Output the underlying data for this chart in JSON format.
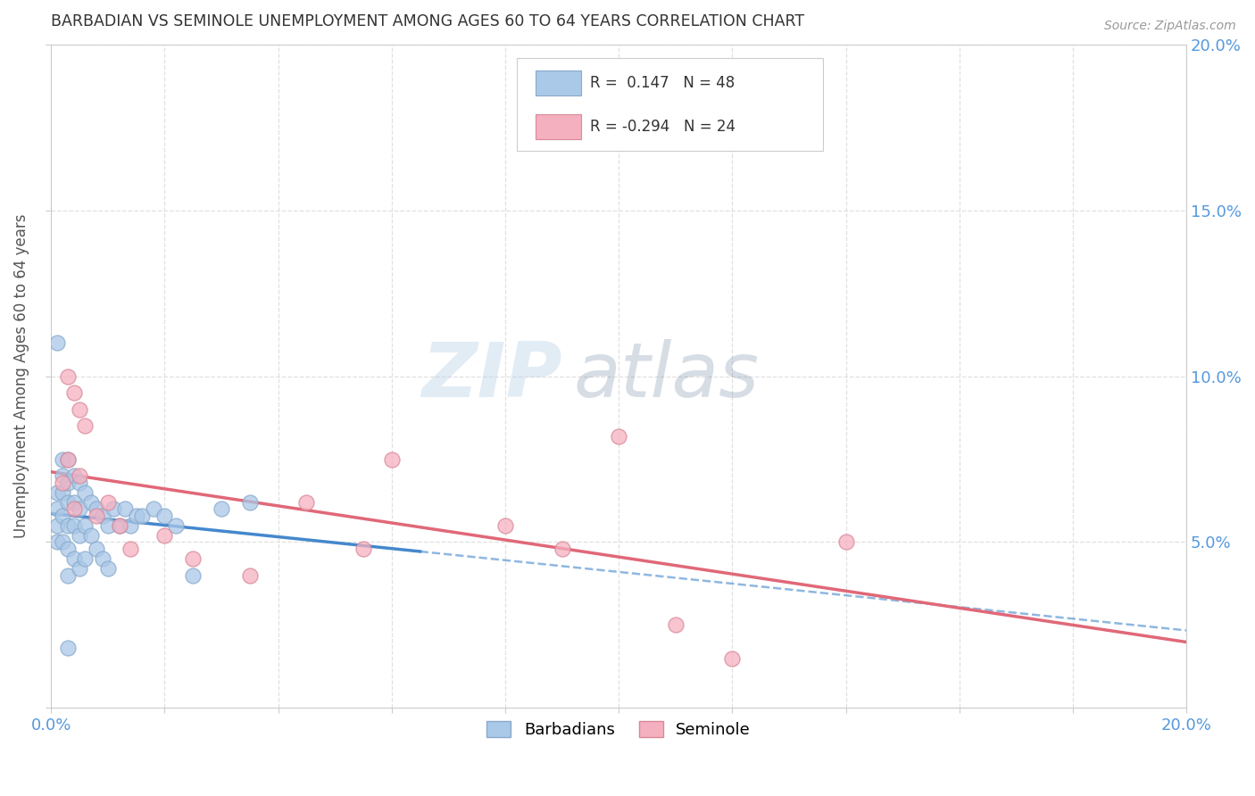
{
  "title": "BARBADIAN VS SEMINOLE UNEMPLOYMENT AMONG AGES 60 TO 64 YEARS CORRELATION CHART",
  "source": "Source: ZipAtlas.com",
  "ylabel": "Unemployment Among Ages 60 to 64 years",
  "xlim": [
    0,
    0.2
  ],
  "ylim": [
    0,
    0.2
  ],
  "barbadian_color": "#aac8e8",
  "barbadian_edge": "#88aacc",
  "seminole_color": "#f5b0c0",
  "seminole_edge": "#d88898",
  "barbadian_line_color": "#4488cc",
  "seminole_line_color": "#e06878",
  "r_barbadian": 0.147,
  "n_barbadian": 48,
  "r_seminole": -0.294,
  "n_seminole": 24,
  "watermark_zip": "ZIP",
  "watermark_atlas": "atlas",
  "barbadian_x": [
    0.001,
    0.001,
    0.001,
    0.001,
    0.002,
    0.002,
    0.002,
    0.002,
    0.002,
    0.003,
    0.003,
    0.003,
    0.003,
    0.003,
    0.003,
    0.004,
    0.004,
    0.004,
    0.004,
    0.005,
    0.005,
    0.005,
    0.005,
    0.006,
    0.006,
    0.006,
    0.007,
    0.007,
    0.008,
    0.008,
    0.009,
    0.009,
    0.01,
    0.01,
    0.011,
    0.012,
    0.013,
    0.014,
    0.015,
    0.016,
    0.018,
    0.02,
    0.022,
    0.025,
    0.03,
    0.035,
    0.001,
    0.003
  ],
  "barbadian_y": [
    0.065,
    0.06,
    0.055,
    0.05,
    0.075,
    0.07,
    0.065,
    0.058,
    0.05,
    0.075,
    0.068,
    0.062,
    0.055,
    0.048,
    0.04,
    0.07,
    0.062,
    0.055,
    0.045,
    0.068,
    0.06,
    0.052,
    0.042,
    0.065,
    0.055,
    0.045,
    0.062,
    0.052,
    0.06,
    0.048,
    0.058,
    0.045,
    0.055,
    0.042,
    0.06,
    0.055,
    0.06,
    0.055,
    0.058,
    0.058,
    0.06,
    0.058,
    0.055,
    0.04,
    0.06,
    0.062,
    0.11,
    0.018
  ],
  "seminole_x": [
    0.002,
    0.003,
    0.003,
    0.004,
    0.004,
    0.005,
    0.005,
    0.006,
    0.008,
    0.01,
    0.012,
    0.014,
    0.02,
    0.025,
    0.035,
    0.045,
    0.055,
    0.06,
    0.1,
    0.11,
    0.12,
    0.14,
    0.08,
    0.09
  ],
  "seminole_y": [
    0.068,
    0.1,
    0.075,
    0.095,
    0.06,
    0.09,
    0.07,
    0.085,
    0.058,
    0.062,
    0.055,
    0.048,
    0.052,
    0.045,
    0.04,
    0.062,
    0.048,
    0.075,
    0.082,
    0.025,
    0.015,
    0.05,
    0.055,
    0.048
  ]
}
